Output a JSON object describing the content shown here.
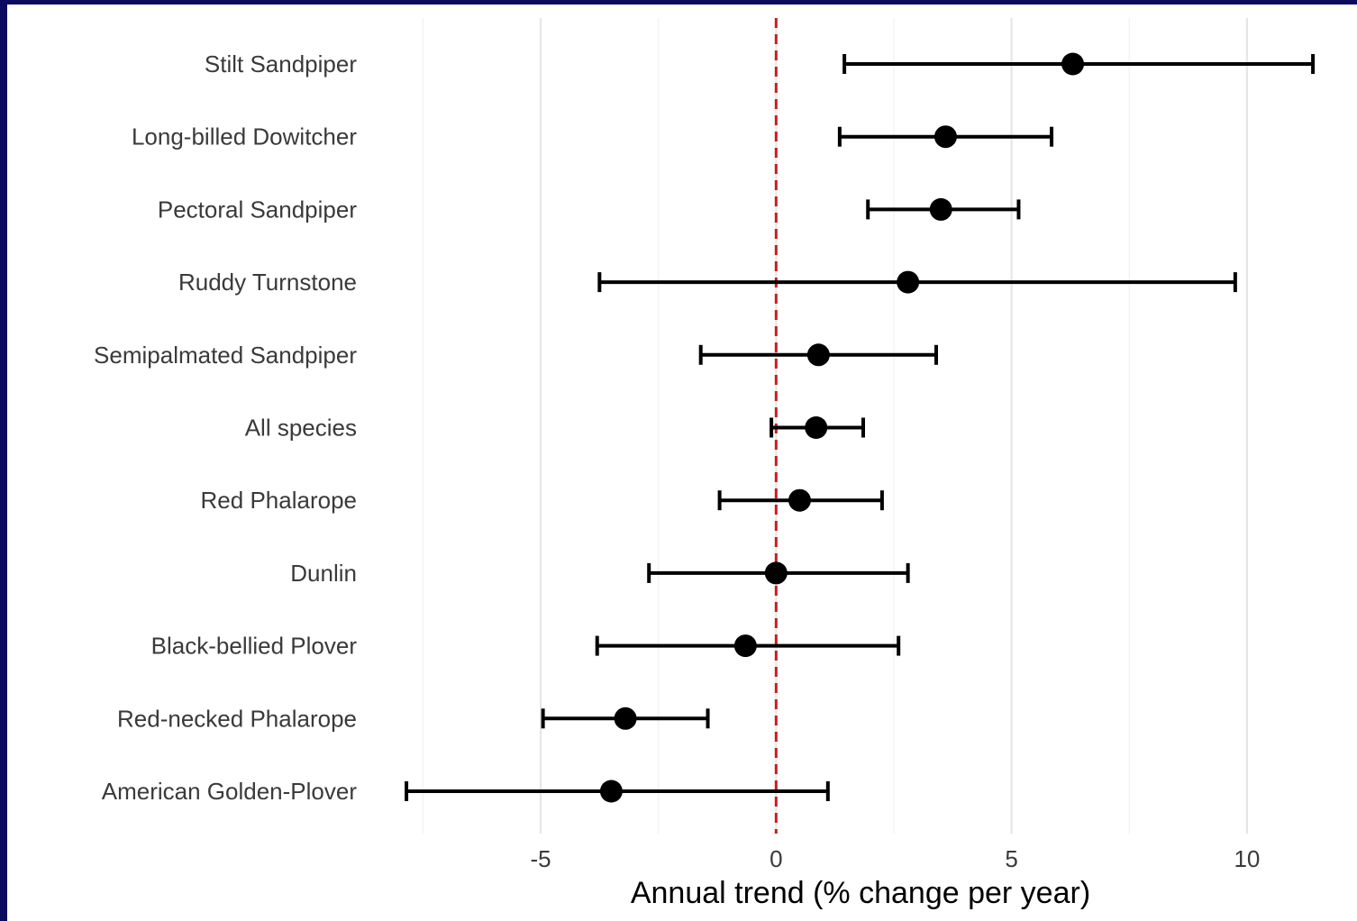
{
  "colors": {
    "frame": "#0a0a5e",
    "background": "#ffffff",
    "grid": "#e6e6e6",
    "reference_line": "#c81e1e",
    "marks": "#000000"
  },
  "chart_data": {
    "type": "scatter",
    "style": "forest plot: point estimates with horizontal error bars",
    "xlabel": "Annual trend (% change per year)",
    "ylabel": "",
    "xlim": [
      -8.1,
      11.8
    ],
    "xticks": [
      -5,
      0,
      5,
      10
    ],
    "xtick_labels": [
      "-5",
      "0",
      "5",
      "10"
    ],
    "minor_gridlines": [
      -7.5,
      -2.5,
      2.5,
      7.5
    ],
    "grid": true,
    "reference_line": {
      "x": 0,
      "style": "dashed",
      "color": "red"
    },
    "categories": [
      "Stilt Sandpiper",
      "Long-billed Dowitcher",
      "Pectoral Sandpiper",
      "Ruddy Turnstone",
      "Semipalmated Sandpiper",
      "All species",
      "Red Phalarope",
      "Dunlin",
      "Black-bellied Plover",
      "Red-necked Phalarope",
      "American Golden-Plover"
    ],
    "estimate": [
      6.3,
      3.6,
      3.5,
      2.8,
      0.9,
      0.85,
      0.5,
      0.0,
      -0.65,
      -3.2,
      -3.5
    ],
    "lower": [
      1.45,
      1.35,
      1.95,
      -3.75,
      -1.6,
      -0.1,
      -1.2,
      -2.7,
      -3.8,
      -4.95,
      -7.85
    ],
    "upper": [
      11.4,
      5.85,
      5.15,
      9.75,
      3.4,
      1.85,
      2.25,
      2.8,
      2.6,
      -1.45,
      1.1
    ]
  }
}
